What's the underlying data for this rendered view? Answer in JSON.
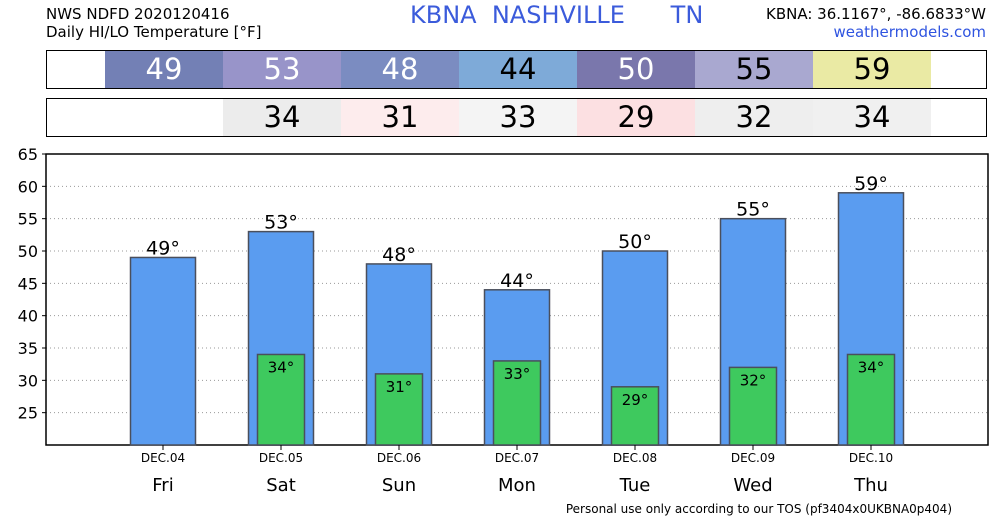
{
  "header": {
    "line1": "NWS NDFD 2020120416",
    "line2": "Daily HI/LO Temperature [°F]",
    "station": "KBNA  NASHVILLE      TN",
    "coords": "KBNA: 36.1167°, -86.6833°W",
    "site": "weathermodels.com"
  },
  "strips": {
    "high": [
      {
        "value": "49",
        "color": "#7380b5",
        "text_color": "#ffffff"
      },
      {
        "value": "53",
        "color": "#9894c9",
        "text_color": "#ffffff"
      },
      {
        "value": "48",
        "color": "#7b8cc1",
        "text_color": "#ffffff"
      },
      {
        "value": "44",
        "color": "#7eaad8",
        "text_color": "#000000"
      },
      {
        "value": "50",
        "color": "#7a77ac",
        "text_color": "#ffffff"
      },
      {
        "value": "55",
        "color": "#a9a8d0",
        "text_color": "#000000"
      },
      {
        "value": "59",
        "color": "#eaeaa4",
        "text_color": "#000000"
      }
    ],
    "low": [
      {
        "value": "34",
        "color": "#ececec"
      },
      {
        "value": "31",
        "color": "#fdeced"
      },
      {
        "value": "33",
        "color": "#f4f4f4"
      },
      {
        "value": "29",
        "color": "#fce0e2"
      },
      {
        "value": "32",
        "color": "#eeeeee"
      },
      {
        "value": "34",
        "color": "#f0f0f0"
      }
    ]
  },
  "chart_data": {
    "type": "bar",
    "categories": [
      "Fri",
      "Sat",
      "Sun",
      "Mon",
      "Tue",
      "Wed",
      "Thu"
    ],
    "dates": [
      "DEC.04",
      "DEC.05",
      "DEC.06",
      "DEC.07",
      "DEC.08",
      "DEC.09",
      "DEC.10"
    ],
    "series": [
      {
        "values": [
          49,
          53,
          48,
          44,
          50,
          55,
          59
        ],
        "color": "#5a9cf0",
        "labels": [
          "49°",
          "53°",
          "48°",
          "44°",
          "50°",
          "55°",
          "59°"
        ]
      },
      {
        "values": [
          null,
          34,
          31,
          33,
          29,
          32,
          34
        ],
        "color": "#3ec95e",
        "labels": [
          "",
          "34°",
          "31°",
          "33°",
          "29°",
          "32°",
          "34°"
        ]
      }
    ],
    "yticks": [
      25,
      30,
      35,
      40,
      45,
      50,
      55,
      60,
      65
    ],
    "ylim": [
      20,
      65
    ],
    "grid": true
  },
  "footer": {
    "text": "Personal use only according to our TOS (pf3404x0UKBNA0p404)"
  }
}
